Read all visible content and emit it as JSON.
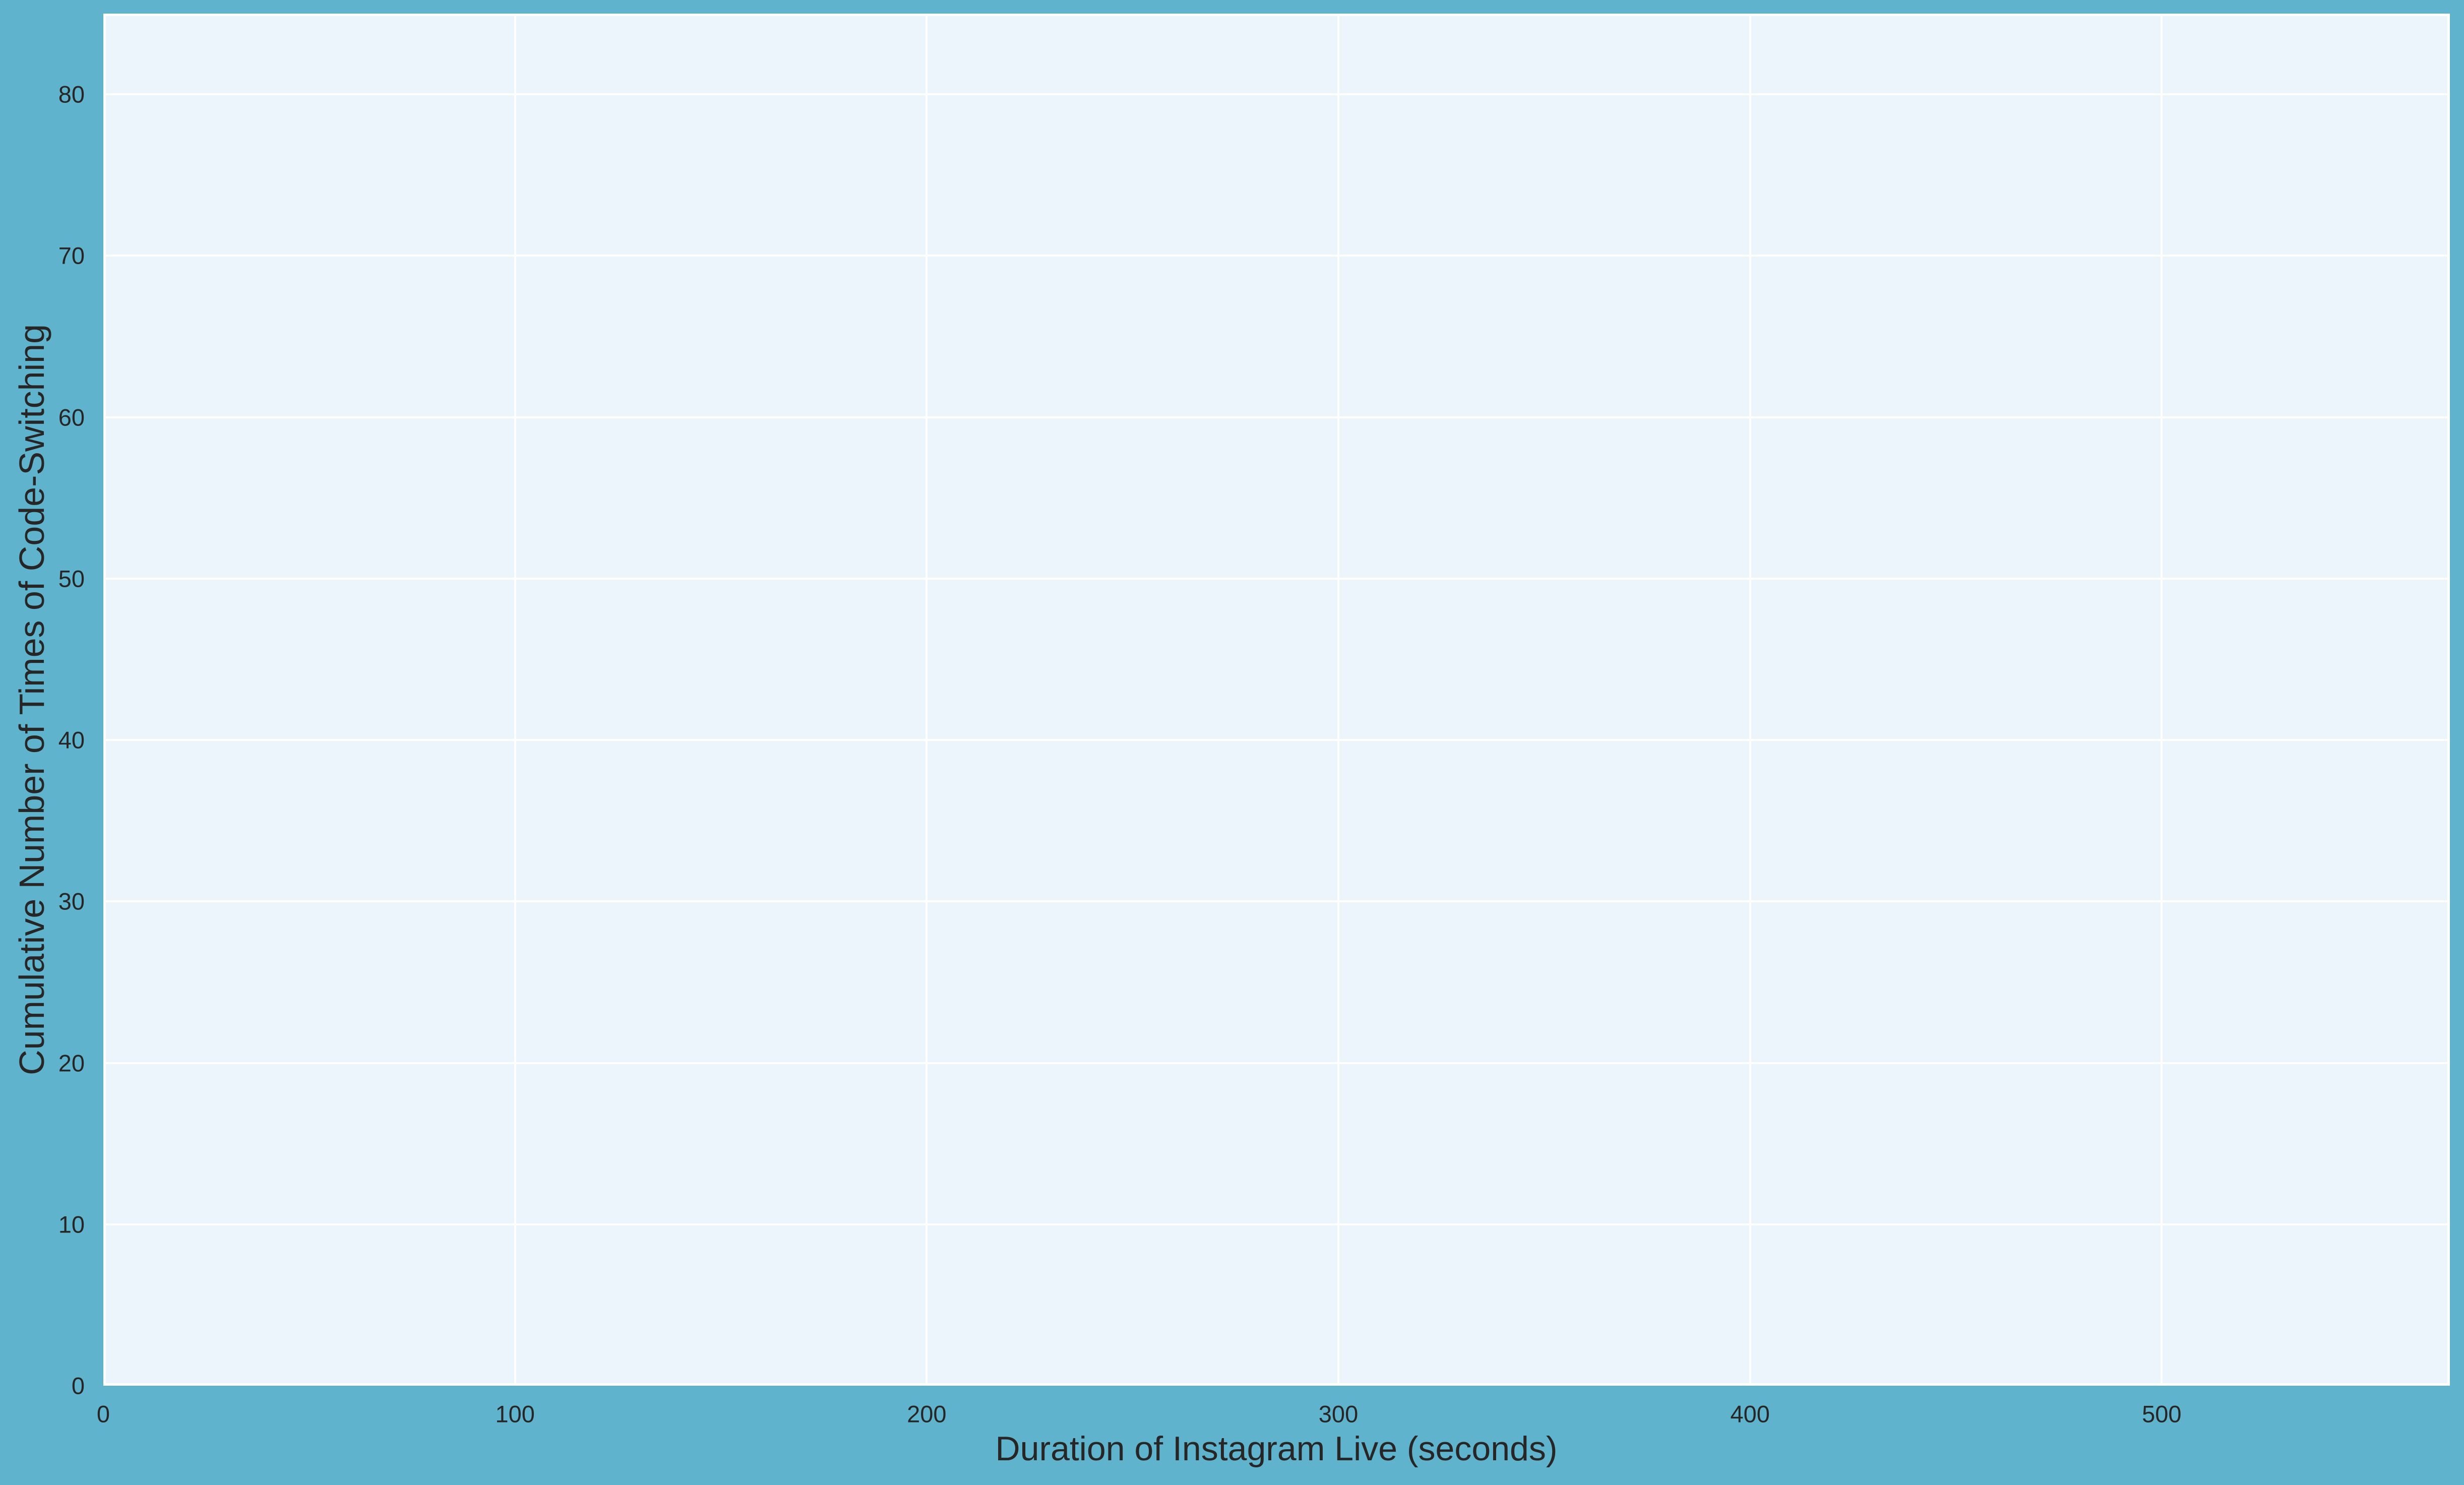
{
  "chart_data": {
    "type": "line",
    "title": "",
    "xlabel": "Duration of Instagram Live (seconds)",
    "ylabel": "Cumulative Number of Times of Code-Switching",
    "xlim": [
      0,
      570
    ],
    "ylim": [
      0,
      85
    ],
    "xticks": [
      0,
      100,
      200,
      300,
      400,
      500
    ],
    "yticks": [
      0,
      10,
      20,
      30,
      40,
      50,
      60,
      70,
      80
    ],
    "grid": true,
    "legend_position": "none",
    "series": [],
    "colors": {
      "figure_background": "#60b3cd",
      "axes_background": "#edf5fc",
      "gridline": "#ffffff",
      "axes_edge": "#ffffff",
      "text": "#262626"
    }
  }
}
